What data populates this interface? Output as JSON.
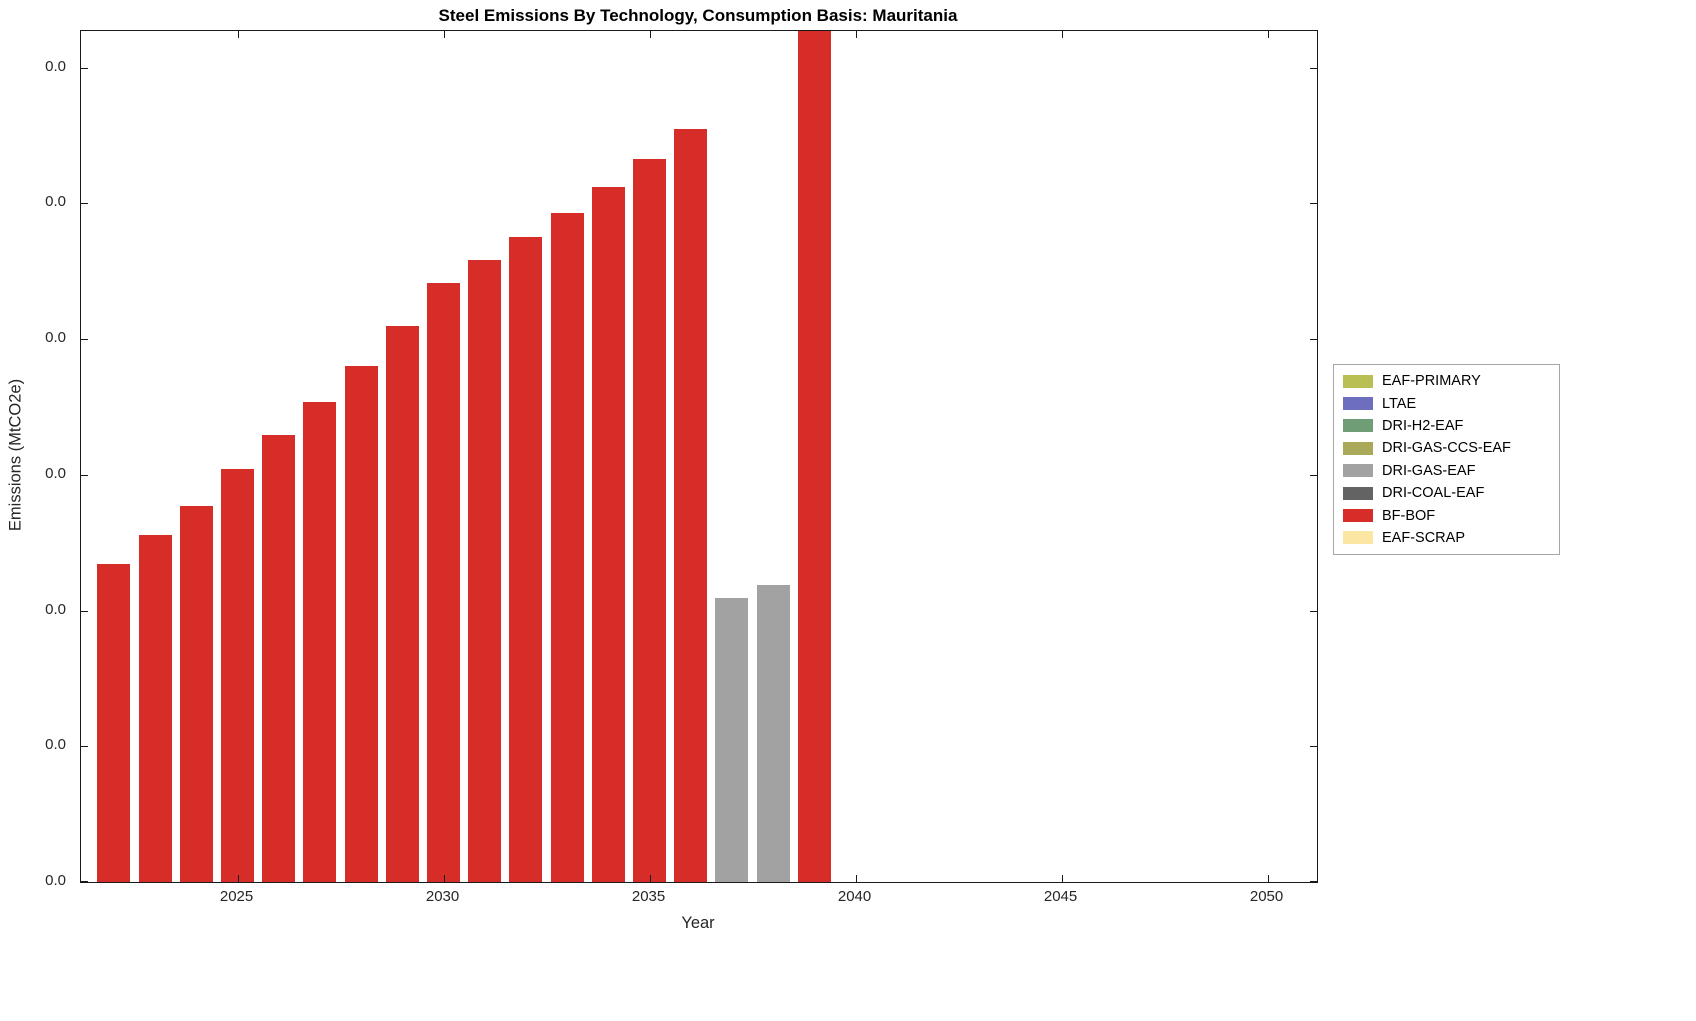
{
  "chart_data": {
    "type": "bar",
    "title": "Steel Emissions By Technology, Consumption Basis: Mauritania",
    "xlabel": "Year",
    "ylabel": "Emissions (MtCO2e)",
    "xlim": [
      2021.2,
      2051.2
    ],
    "ylim": [
      0,
      6.27
    ],
    "grid": false,
    "legend_position": "right-outside",
    "value_note": "Bar values given in relative y-axis tick units (tick spacing = 1); every y tick label displays 0.0, so absolute emissions are below display precision.",
    "x_ticks": {
      "values": [
        2025,
        2030,
        2035,
        2040,
        2045,
        2050
      ],
      "labels": [
        "2025",
        "2030",
        "2035",
        "2040",
        "2045",
        "2050"
      ]
    },
    "y_ticks": {
      "values": [
        0,
        1,
        2,
        3,
        4,
        5,
        6
      ],
      "labels": [
        "0.0",
        "0.0",
        "0.0",
        "0.0",
        "0.0",
        "0.0",
        "0.0"
      ]
    },
    "bar_width_years": 0.8,
    "bars": [
      {
        "year": 2022,
        "tech": "BF-BOF",
        "value": 2.34
      },
      {
        "year": 2023,
        "tech": "BF-BOF",
        "value": 2.56
      },
      {
        "year": 2024,
        "tech": "BF-BOF",
        "value": 2.77
      },
      {
        "year": 2025,
        "tech": "BF-BOF",
        "value": 3.04
      },
      {
        "year": 2026,
        "tech": "BF-BOF",
        "value": 3.29
      },
      {
        "year": 2027,
        "tech": "BF-BOF",
        "value": 3.54
      },
      {
        "year": 2028,
        "tech": "BF-BOF",
        "value": 3.8
      },
      {
        "year": 2029,
        "tech": "BF-BOF",
        "value": 4.1
      },
      {
        "year": 2030,
        "tech": "BF-BOF",
        "value": 4.41
      },
      {
        "year": 2031,
        "tech": "BF-BOF",
        "value": 4.58
      },
      {
        "year": 2032,
        "tech": "BF-BOF",
        "value": 4.75
      },
      {
        "year": 2033,
        "tech": "BF-BOF",
        "value": 4.93
      },
      {
        "year": 2034,
        "tech": "BF-BOF",
        "value": 5.12
      },
      {
        "year": 2035,
        "tech": "BF-BOF",
        "value": 5.33
      },
      {
        "year": 2036,
        "tech": "BF-BOF",
        "value": 5.55
      },
      {
        "year": 2037,
        "tech": "DRI-GAS-EAF",
        "value": 2.09
      },
      {
        "year": 2038,
        "tech": "DRI-GAS-EAF",
        "value": 2.19
      },
      {
        "year": 2039,
        "tech": "BF-BOF",
        "value": 6.27,
        "clipped_at_top": true
      }
    ],
    "legend": [
      {
        "label": "EAF-PRIMARY",
        "color": "#b9bf53"
      },
      {
        "label": "LTAE",
        "color": "#6e6ebe"
      },
      {
        "label": "DRI-H2-EAF",
        "color": "#6f9d75"
      },
      {
        "label": "DRI-GAS-CCS-EAF",
        "color": "#a9a959"
      },
      {
        "label": "DRI-GAS-EAF",
        "color": "#a2a2a2"
      },
      {
        "label": "DRI-COAL-EAF",
        "color": "#636363"
      },
      {
        "label": "BF-BOF",
        "color": "#d62d28"
      },
      {
        "label": "EAF-SCRAP",
        "color": "#fbe7a3"
      }
    ]
  },
  "colors": {
    "background": "#ffffff",
    "axis": "#1a1a1a",
    "tick_text": "#262626",
    "legend_border": "#a6a6a6"
  }
}
